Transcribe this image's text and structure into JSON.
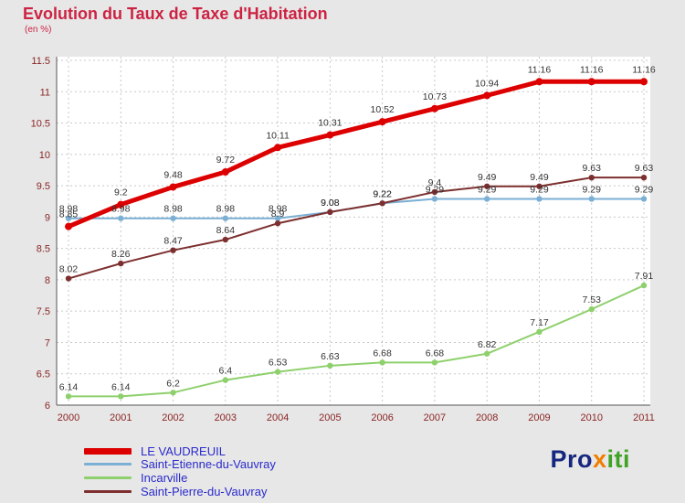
{
  "header": {
    "title": "Evolution du Taux de Taxe d'Habitation",
    "subtitle": "(en %)"
  },
  "chart_data": {
    "type": "line",
    "x": [
      2000,
      2001,
      2002,
      2003,
      2004,
      2005,
      2006,
      2007,
      2008,
      2009,
      2010,
      2011
    ],
    "series": [
      {
        "name": "LE VAUDREUIL",
        "color": "#dd0000",
        "width": 5,
        "values": [
          8.85,
          9.2,
          9.48,
          9.72,
          10.11,
          10.31,
          10.52,
          10.73,
          10.94,
          11.16,
          11.16,
          11.16
        ]
      },
      {
        "name": "Saint-Etienne-du-Vauvray",
        "color": "#7bafd4",
        "width": 2,
        "values": [
          8.98,
          8.98,
          8.98,
          8.98,
          8.98,
          9.08,
          9.22,
          9.29,
          9.29,
          9.29,
          9.29,
          9.29
        ]
      },
      {
        "name": "Incarville",
        "color": "#8ed06c",
        "width": 2,
        "values": [
          6.14,
          6.14,
          6.2,
          6.4,
          6.53,
          6.63,
          6.68,
          6.68,
          6.82,
          7.17,
          7.53,
          7.91
        ]
      },
      {
        "name": "Saint-Pierre-du-Vauvray",
        "color": "#7d2f2f",
        "width": 2,
        "values": [
          8.02,
          8.26,
          8.47,
          8.64,
          8.9,
          9.08,
          9.22,
          9.4,
          9.49,
          9.49,
          9.63,
          9.63
        ]
      }
    ],
    "title": "Evolution du Taux de Taxe d'Habitation",
    "xlabel": "",
    "ylabel": "en %",
    "ylim": [
      6,
      11.5
    ],
    "ytick_step": 0.5,
    "grid": true,
    "legend_position": "bottom-left"
  },
  "colors": {
    "title": "#cc2343",
    "axis_tick": "#8b2525",
    "axis_line": "#555555",
    "grid": "#c8c8c8",
    "data_label": "#333333",
    "plot_background": "#ffffff",
    "page_background": "#e7e7e7",
    "legend_text": "#2a2acc"
  },
  "logo": {
    "segments": [
      {
        "text": "Pro",
        "color": "#16267e"
      },
      {
        "text": "x",
        "color": "#f07f00"
      },
      {
        "text": "iti",
        "color": "#41a326"
      }
    ]
  }
}
